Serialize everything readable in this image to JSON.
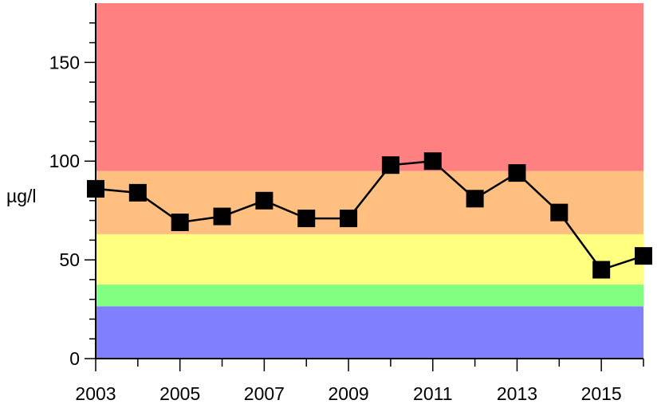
{
  "chart_data": {
    "type": "line",
    "title": "",
    "xlabel": "",
    "ylabel": "µg/l",
    "xlim": [
      2003,
      2016
    ],
    "ylim": [
      0,
      180
    ],
    "x_ticks_major": [
      2003,
      2005,
      2007,
      2009,
      2011,
      2013,
      2015
    ],
    "x_ticks_minor": [
      2004,
      2006,
      2008,
      2010,
      2012,
      2014,
      2016
    ],
    "y_ticks_major": [
      0,
      50,
      100,
      150
    ],
    "y_ticks_minor": [
      10,
      20,
      30,
      40,
      60,
      70,
      80,
      90,
      110,
      120,
      130,
      140,
      160,
      170
    ],
    "grid": false,
    "bands": [
      {
        "from": 0,
        "to": 26.5,
        "color": "#8080ff"
      },
      {
        "from": 26.5,
        "to": 37.5,
        "color": "#80ff80"
      },
      {
        "from": 37.5,
        "to": 63,
        "color": "#ffff80"
      },
      {
        "from": 63,
        "to": 95,
        "color": "#ffbf80"
      },
      {
        "from": 95,
        "to": 180,
        "color": "#ff8080"
      }
    ],
    "series": [
      {
        "color": "#000000",
        "x": [
          2003,
          2004,
          2005,
          2006,
          2007,
          2008,
          2009,
          2010,
          2011,
          2012,
          2013,
          2014,
          2015,
          2016
        ],
        "values": [
          86,
          84,
          69,
          72,
          80,
          71,
          71,
          98,
          100,
          81,
          94,
          74,
          45,
          52
        ]
      }
    ]
  }
}
